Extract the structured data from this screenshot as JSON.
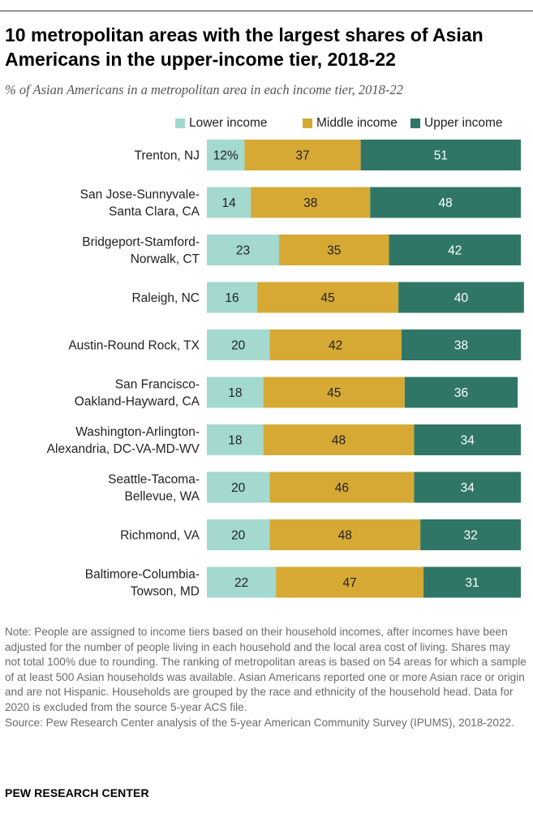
{
  "chart_data": {
    "type": "bar",
    "orientation": "horizontal",
    "stacked": true,
    "title": "10 metropolitan areas with the largest shares of Asian Americans in the upper-income tier, 2018-22",
    "subtitle": "% of Asian Americans in a metropolitan area in each income tier, 2018-22",
    "categories": [
      [
        "Trenton, NJ"
      ],
      [
        "San Jose-Sunnyvale-",
        "Santa Clara, CA"
      ],
      [
        "Bridgeport-Stamford-",
        "Norwalk, CT"
      ],
      [
        "Raleigh, NC"
      ],
      [
        "Austin-Round Rock, TX"
      ],
      [
        "San Francisco-",
        "Oakland-Hayward, CA"
      ],
      [
        "Washington-Arlington-",
        "Alexandria, DC-VA-MD-WV"
      ],
      [
        "Seattle-Tacoma-",
        "Bellevue, WA"
      ],
      [
        "Richmond, VA"
      ],
      [
        "Baltimore-Columbia-",
        "Towson, MD"
      ]
    ],
    "series": [
      {
        "name": "Lower income",
        "color": "#a3d9cf",
        "text_color": "#222222",
        "values": [
          12,
          14,
          23,
          16,
          20,
          18,
          18,
          20,
          20,
          22
        ],
        "labels": [
          "12%",
          "14",
          "23",
          "16",
          "20",
          "18",
          "18",
          "20",
          "20",
          "22"
        ]
      },
      {
        "name": "Middle income",
        "color": "#d6a935",
        "text_color": "#222222",
        "values": [
          37,
          38,
          35,
          45,
          42,
          45,
          48,
          46,
          48,
          47
        ],
        "labels": [
          "37",
          "38",
          "35",
          "45",
          "42",
          "45",
          "48",
          "46",
          "48",
          "47"
        ]
      },
      {
        "name": "Upper income",
        "color": "#307666",
        "text_color": "#ffffff",
        "values": [
          51,
          48,
          42,
          40,
          38,
          36,
          34,
          34,
          32,
          31
        ],
        "labels": [
          "51",
          "48",
          "42",
          "40",
          "38",
          "36",
          "34",
          "34",
          "32",
          "31"
        ]
      }
    ],
    "xlim": [
      0,
      100
    ],
    "grid": false,
    "legend_position": "top"
  },
  "notes": {
    "note": "Note: People are assigned to income tiers based on their household incomes, after incomes have been adjusted for the number of people living in each household and the local area cost of living. Shares may not total 100% due to rounding. The ranking of metropolitan areas is based on 54 areas for which a sample of at least 500 Asian households was available. Asian Americans reported one or more Asian race or origin and are not Hispanic. Households are grouped by the race and ethnicity of the household head. Data for 2020 is excluded from the source 5-year ACS file.",
    "source": "Source: Pew Research Center analysis of the 5-year American Community Survey (IPUMS), 2018-2022.",
    "brand": "PEW RESEARCH CENTER"
  }
}
